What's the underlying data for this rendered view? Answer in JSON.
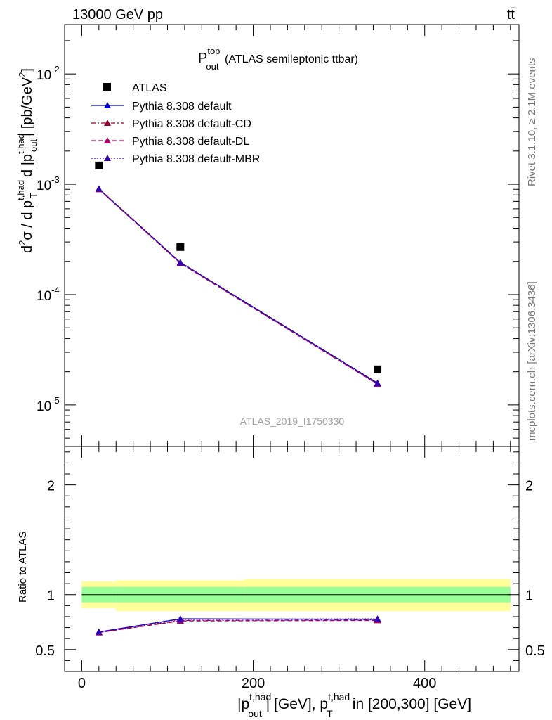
{
  "header": {
    "energy_label": "13000 GeV pp",
    "process_label": "tt̄"
  },
  "side_labels": {
    "rivet": "Rivet 3.1.10, ≥ 2.1M events",
    "mcplots": "mcplots.cern.ch [arXiv:1306.3436]"
  },
  "colors": {
    "data": "#000000",
    "default": "#0000cc",
    "cd": "#990033",
    "dl": "#aa0066",
    "mbr": "#3300bb",
    "band_inner": "#99ff99",
    "band_outer": "#ffff99"
  },
  "chart_data": {
    "type": "line",
    "title_main": "P",
    "title_sup": "top",
    "title_sub": "out",
    "title_rest": "(ATLAS semileptonic ttbar)",
    "watermark": "ATLAS_2019_I1750330",
    "x_axis": {
      "label_parts": {
        "a": "|p",
        "a_sup": "t,had",
        "a_sub": "out",
        "b": "| [GeV], p",
        "b_sup": "t,had",
        "b_sub": "T",
        "c": "in [200,300] [GeV]"
      },
      "range": [
        -20,
        510
      ],
      "major_ticks": [
        0,
        200,
        400
      ],
      "tick_labels": [
        "0",
        "200",
        "400"
      ]
    },
    "y_axis": {
      "scale": "log",
      "label_parts": {
        "a": "d",
        "a_sup": "2",
        "b": "σ / d p",
        "b_sup": "t,had",
        "b_sub": "T",
        "c": "d |p",
        "c_sup": "t,had",
        "c_sub": "out",
        "d": "| [pb/GeV",
        "d_sup": "2",
        "e": "]"
      },
      "range": [
        4.2e-06,
        0.028
      ],
      "tick_labels": [
        {
          "value": 1e-05,
          "base": "10",
          "exp": "-5"
        },
        {
          "value": 0.0001,
          "base": "10",
          "exp": "-4"
        },
        {
          "value": 0.001,
          "base": "10",
          "exp": "-3"
        },
        {
          "value": 0.01,
          "base": "10",
          "exp": "-2"
        }
      ]
    },
    "ratio_axis": {
      "label": "Ratio to ATLAS",
      "range": [
        0.3,
        2.35
      ],
      "tick_labels": [
        "0.5",
        "1",
        "2"
      ],
      "tick_values": [
        0.5,
        1,
        2
      ]
    },
    "data_series": {
      "name": "ATLAS",
      "x": [
        20,
        115,
        345
      ],
      "y": [
        0.00148,
        0.00027,
        2.1e-05
      ]
    },
    "ratio_band": {
      "x_edges": [
        0,
        40,
        190,
        500
      ],
      "inner": [
        [
          0.93,
          1.07
        ],
        [
          0.93,
          1.07
        ],
        [
          0.93,
          1.07
        ]
      ],
      "outer": [
        [
          0.88,
          1.12
        ],
        [
          0.85,
          1.13
        ],
        [
          0.85,
          1.14
        ]
      ]
    },
    "series": [
      {
        "name": "Pythia 8.308 default",
        "key": "default",
        "style": "solid",
        "x": [
          20,
          115,
          345
        ],
        "y": [
          0.00091,
          0.000196,
          1.58e-05
        ],
        "ratio": [
          0.66,
          0.78,
          0.775
        ]
      },
      {
        "name": "Pythia 8.308 default-CD",
        "key": "cd",
        "style": "dashdot",
        "x": [
          20,
          115,
          345
        ],
        "y": [
          0.0009,
          0.000193,
          1.55e-05
        ],
        "ratio": [
          0.655,
          0.765,
          0.77
        ]
      },
      {
        "name": "Pythia 8.308 default-DL",
        "key": "dl",
        "style": "dashed",
        "x": [
          20,
          115,
          345
        ],
        "y": [
          0.0009,
          0.000192,
          1.54e-05
        ],
        "ratio": [
          0.655,
          0.76,
          0.765
        ]
      },
      {
        "name": "Pythia 8.308 default-MBR",
        "key": "mbr",
        "style": "dotted",
        "x": [
          20,
          115,
          345
        ],
        "y": [
          0.00091,
          0.000195,
          1.57e-05
        ],
        "ratio": [
          0.66,
          0.775,
          0.78
        ]
      }
    ]
  }
}
